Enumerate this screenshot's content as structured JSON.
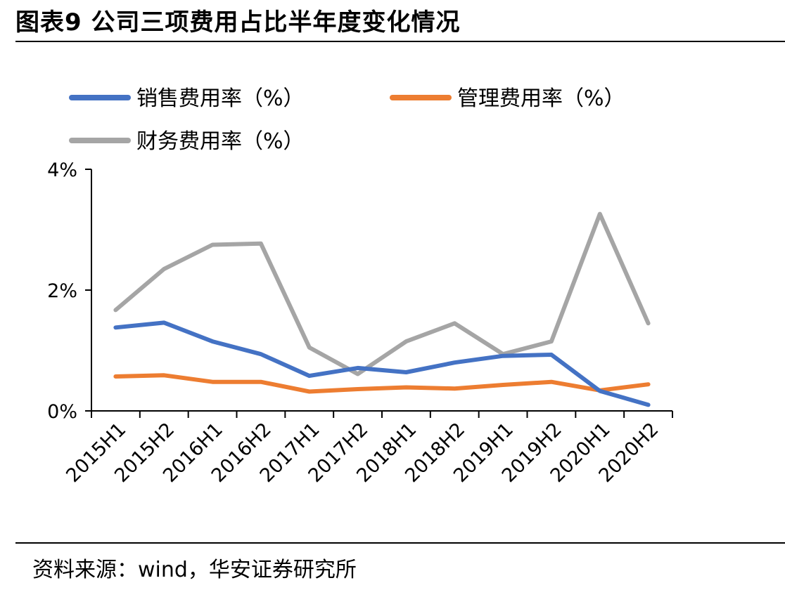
{
  "header": {
    "title": "图表9 公司三项费用占比半年度变化情况"
  },
  "footer": {
    "source": "资料来源：wind，华安证券研究所"
  },
  "colors": {
    "blue": "#4472C4",
    "orange": "#ED7D31",
    "gray": "#A5A5A5",
    "axis": "#000000"
  },
  "chart_data": {
    "type": "line",
    "categories": [
      "2015H1",
      "2015H2",
      "2016H1",
      "2016H2",
      "2017H1",
      "2017H2",
      "2018H1",
      "2018H2",
      "2019H1",
      "2019H2",
      "2020H1",
      "2020H2"
    ],
    "series": [
      {
        "name": "销售费用率（%）",
        "color": "#4472C4",
        "values": [
          1.38,
          1.46,
          1.15,
          0.94,
          0.58,
          0.71,
          0.64,
          0.8,
          0.91,
          0.93,
          0.33,
          0.1
        ]
      },
      {
        "name": "管理费用率（%）",
        "color": "#ED7D31",
        "values": [
          0.57,
          0.59,
          0.48,
          0.48,
          0.32,
          0.36,
          0.39,
          0.37,
          0.43,
          0.48,
          0.34,
          0.44
        ]
      },
      {
        "name": "财务费用率（%）",
        "color": "#A5A5A5",
        "values": [
          1.67,
          2.35,
          2.75,
          2.77,
          1.05,
          0.61,
          1.15,
          1.45,
          0.94,
          1.15,
          3.26,
          1.45
        ]
      }
    ],
    "yticks": [
      "0%",
      "2%",
      "4%"
    ],
    "ytick_values": [
      0,
      2,
      4
    ],
    "ylim": [
      0,
      4
    ],
    "legend_position": "top",
    "grid": false
  }
}
